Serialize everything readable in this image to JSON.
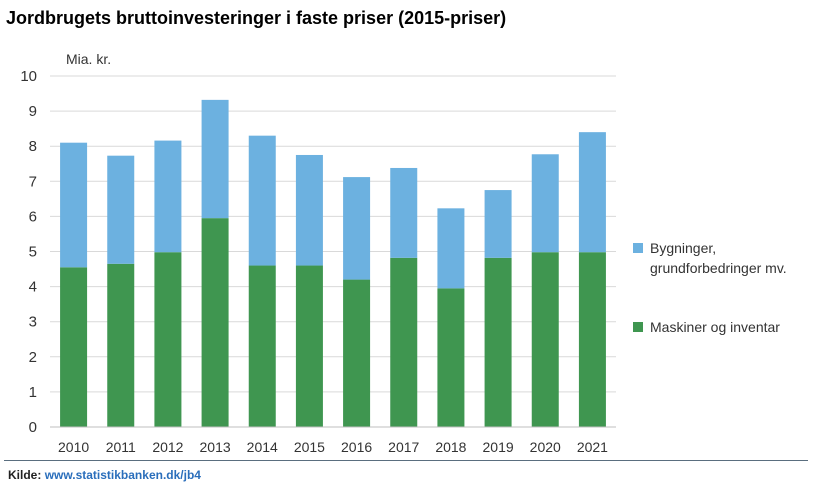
{
  "title": "Jordbrugets bruttoinvesteringer i faste priser (2015-priser)",
  "source": {
    "prefix": "Kilde:",
    "link": "www.statistikbanken.dk/jb4"
  },
  "colors": {
    "bygninger": "#6cb1e0",
    "maskiner": "#3f9650",
    "grid": "#d9d9d9"
  },
  "chart_data": {
    "type": "bar",
    "stacked": true,
    "ylabel": "Mia. kr.",
    "ylim": [
      0,
      10
    ],
    "yticks": [
      0,
      1,
      2,
      3,
      4,
      5,
      6,
      7,
      8,
      9,
      10
    ],
    "grid": true,
    "legend_position": "right",
    "categories": [
      "2010",
      "2011",
      "2012",
      "2013",
      "2014",
      "2015",
      "2016",
      "2017",
      "2018",
      "2019",
      "2020",
      "2021"
    ],
    "series": [
      {
        "name": "Maskiner og inventar",
        "color": "#3f9650",
        "values": [
          4.55,
          4.65,
          4.98,
          5.95,
          4.6,
          4.6,
          4.2,
          4.82,
          3.95,
          4.82,
          4.98,
          4.98
        ]
      },
      {
        "name": "Bygninger, grundforbedringer mv.",
        "legend_lines": [
          "Bygninger,",
          "grundforbedringer mv."
        ],
        "color": "#6cb1e0",
        "values": [
          3.55,
          3.08,
          3.18,
          3.37,
          3.7,
          3.15,
          2.92,
          2.56,
          2.28,
          1.93,
          2.79,
          3.42
        ]
      }
    ]
  }
}
